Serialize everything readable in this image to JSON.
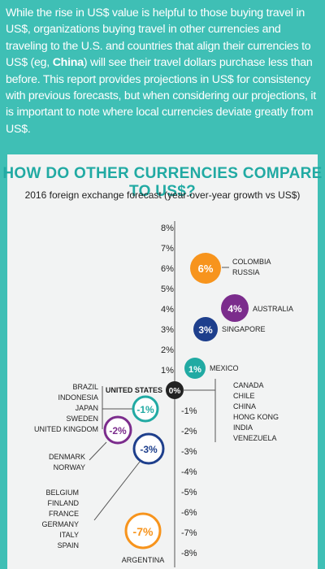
{
  "intro": {
    "part1": "While the rise in US$ value is helpful to those buying travel in US$, organizations buying travel in other currencies and traveling to the U.S. and countries that align their currencies to US$ (eg, ",
    "highlight": "China",
    "part2": ") will see their travel dollars purchase less than before. This report provides projections in US$ for consistency with previous forecasts, but when considering our projections, it is important to note where local currencies deviate greatly from US$."
  },
  "chart_data": {
    "type": "bubble",
    "title": "HOW DO OTHER CURRENCIES COMPARE TO US$?",
    "subtitle": "2016 foreign exchange forecast (year-over-year growth vs US$)",
    "y_ticks": [
      "8%",
      "7%",
      "6%",
      "5%",
      "4%",
      "3%",
      "2%",
      "1%",
      "-1%",
      "-2%",
      "-3%",
      "-4%",
      "-5%",
      "-6%",
      "-7%",
      "-8%"
    ],
    "ylim": [
      -8,
      8
    ],
    "points": [
      {
        "label": "6%",
        "value": 6,
        "color": "#f7941d",
        "countries": [
          "COLOMBIA",
          "RUSSIA"
        ],
        "side": "right"
      },
      {
        "label": "4%",
        "value": 4,
        "color": "#7b2c8c",
        "countries": [
          "AUSTRALIA"
        ],
        "side": "right"
      },
      {
        "label": "3%",
        "value": 3,
        "color": "#1e3f8c",
        "countries": [
          "SINGAPORE"
        ],
        "side": "right"
      },
      {
        "label": "1%",
        "value": 1,
        "color": "#21aaa3",
        "countries": [
          "MEXICO"
        ],
        "side": "right"
      },
      {
        "label": "0%",
        "value": 0,
        "color": "#222222",
        "countries": [
          "UNITED STATES"
        ],
        "side": "left"
      },
      {
        "label": "0%",
        "value": 0,
        "color": "#222222",
        "countries": [
          "CANADA",
          "CHILE",
          "CHINA",
          "HONG KONG",
          "INDIA",
          "VENEZUELA"
        ],
        "side": "right"
      },
      {
        "label": "-1%",
        "value": -1,
        "color": "#21aaa3",
        "countries": [
          "BRAZIL",
          "INDONESIA",
          "JAPAN",
          "SWEDEN",
          "UNITED KINGDOM"
        ],
        "side": "left"
      },
      {
        "label": "-2%",
        "value": -2,
        "color": "#7b2c8c",
        "countries": [
          "DENMARK",
          "NORWAY"
        ],
        "side": "left"
      },
      {
        "label": "-3%",
        "value": -3,
        "color": "#1e3f8c",
        "countries": [
          "BELGIUM",
          "FINLAND",
          "FRANCE",
          "GERMANY",
          "ITALY",
          "SPAIN"
        ],
        "side": "left"
      },
      {
        "label": "-7%",
        "value": -7,
        "color": "#f7941d",
        "countries": [
          "ARGENTINA"
        ],
        "side": "below"
      }
    ]
  }
}
